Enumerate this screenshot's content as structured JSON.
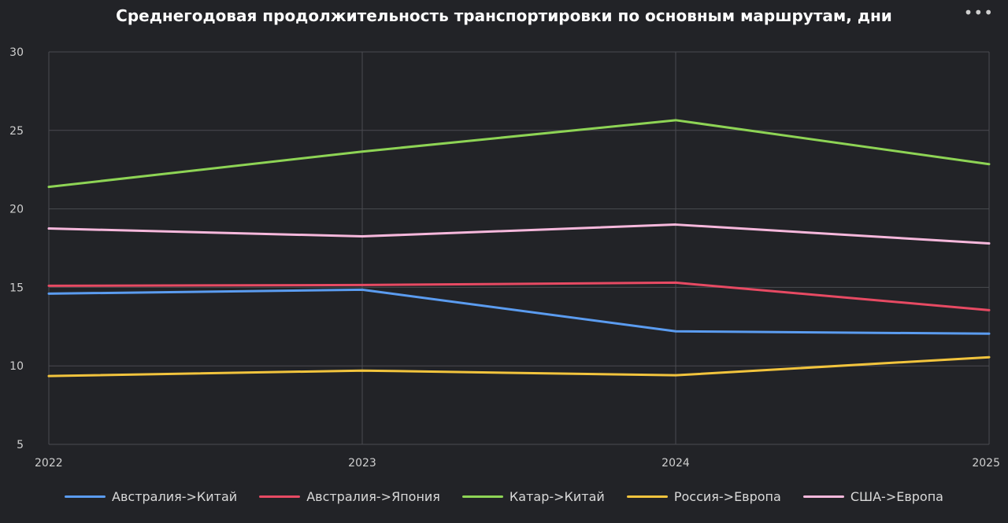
{
  "chart_data": {
    "type": "line",
    "title": "Среднегодовая продолжительность транспортировки по основным маршрутам, дни",
    "x": [
      "2022",
      "2023",
      "2024",
      "2025"
    ],
    "ylim": [
      5,
      30
    ],
    "yticks": [
      5,
      10,
      15,
      20,
      25,
      30
    ],
    "grid": true,
    "legend_position": "bottom",
    "series": [
      {
        "name": "Австралия->Китай",
        "color": "#5b9cf0",
        "values": [
          14.6,
          14.85,
          12.2,
          12.05
        ]
      },
      {
        "name": "Австралия->Япония",
        "color": "#e74a63",
        "values": [
          15.1,
          15.15,
          15.3,
          13.55
        ]
      },
      {
        "name": "Катар->Китай",
        "color": "#8ed455",
        "values": [
          21.4,
          23.65,
          25.65,
          22.85
        ]
      },
      {
        "name": "Россия->Европа",
        "color": "#f2c43d",
        "values": [
          9.35,
          9.7,
          9.4,
          10.55
        ]
      },
      {
        "name": "США->Европа",
        "color": "#f7b8dc",
        "values": [
          18.75,
          18.25,
          19.0,
          17.8
        ]
      }
    ]
  },
  "menu_icon": "more-horizontal-icon",
  "menu_glyph": "•••"
}
